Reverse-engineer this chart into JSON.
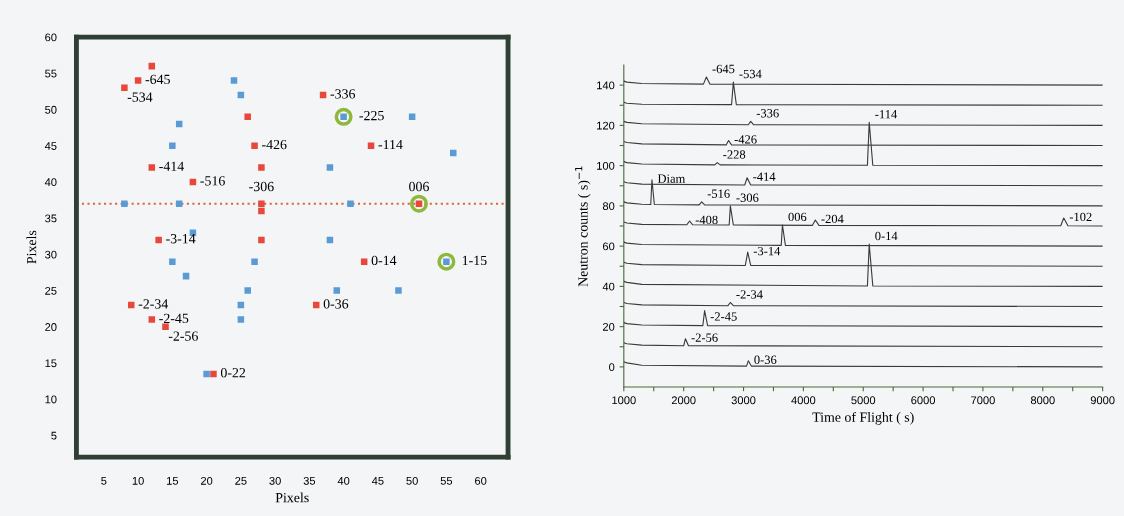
{
  "chart_data": [
    {
      "type": "scatter",
      "xlabel": "Pixels",
      "ylabel": "Pixels",
      "xlim": [
        1,
        64
      ],
      "ylim": [
        2,
        60
      ],
      "xticks": [
        5,
        10,
        15,
        20,
        25,
        30,
        35,
        40,
        45,
        50,
        55,
        60
      ],
      "yticks": [
        5,
        10,
        15,
        20,
        25,
        30,
        35,
        40,
        45,
        50,
        55,
        60
      ],
      "grid": false,
      "legend": false,
      "series": [
        {
          "color": "#e8483c",
          "marker": "square",
          "x": [
            12,
            10,
            8,
            26,
            37,
            27,
            44,
            28,
            12,
            18,
            28,
            28,
            51,
            28,
            13,
            43,
            9,
            12,
            14,
            21,
            36
          ],
          "values": [
            56,
            54,
            53,
            49,
            52,
            45,
            45,
            42,
            42,
            40,
            37,
            36,
            37,
            32,
            32,
            29,
            23,
            21,
            20,
            13.5,
            23
          ]
        },
        {
          "color": "#5b9bd5",
          "marker": "square",
          "x": [
            24,
            25,
            16,
            15,
            40,
            50,
            56,
            38,
            8,
            16,
            41,
            18,
            38,
            15,
            27,
            17,
            55,
            26,
            39,
            48,
            25,
            25,
            20
          ],
          "values": [
            54,
            52,
            48,
            45,
            49,
            49,
            44,
            42,
            37,
            37,
            37,
            33,
            32,
            29,
            29,
            27,
            29,
            25,
            25,
            25,
            23,
            21,
            13.5
          ]
        },
        {
          "color": "#8db83a",
          "marker": "circle",
          "x": [
            40,
            51,
            55
          ],
          "values": [
            49,
            37,
            29
          ]
        }
      ],
      "ref_lines": [
        {
          "axis": "y",
          "value": 37,
          "color": "#e06040",
          "line_style": "dotted"
        }
      ],
      "annotations": [
        {
          "text": "-645",
          "x": 10,
          "y": 54
        },
        {
          "text": "-534",
          "x": 8,
          "y": 53
        },
        {
          "text": "-336",
          "x": 37,
          "y": 52
        },
        {
          "text": "-225",
          "x": 40,
          "y": 49
        },
        {
          "text": "-426",
          "x": 27,
          "y": 45
        },
        {
          "text": "-114",
          "x": 44,
          "y": 45
        },
        {
          "text": "-414",
          "x": 12,
          "y": 42
        },
        {
          "text": "-516",
          "x": 18,
          "y": 40
        },
        {
          "text": "-306",
          "x": 28,
          "y": 37
        },
        {
          "text": "006",
          "x": 51,
          "y": 37
        },
        {
          "text": "-3-14",
          "x": 13,
          "y": 32
        },
        {
          "text": "0-14",
          "x": 43,
          "y": 29
        },
        {
          "text": "1-15",
          "x": 55,
          "y": 29
        },
        {
          "text": "-2-34",
          "x": 9,
          "y": 23
        },
        {
          "text": "-2-45",
          "x": 12,
          "y": 21
        },
        {
          "text": "-2-56",
          "x": 14,
          "y": 20
        },
        {
          "text": "0-36",
          "x": 36,
          "y": 23
        },
        {
          "text": "0-22",
          "x": 21,
          "y": 13.5
        }
      ]
    },
    {
      "type": "line",
      "xlabel": "Time of Flight ( s)",
      "ylabel": "Neutron counts ( s)$^{−1}$",
      "xlim": [
        1000,
        9000
      ],
      "ylim": [
        -10,
        150
      ],
      "xticks": [
        1000,
        {
          "value": 1500,
          "label": null
        },
        2000,
        {
          "value": 2500,
          "label": null
        },
        3000,
        {
          "value": 3500,
          "label": null
        },
        4000,
        {
          "value": 4500,
          "label": null
        },
        5000,
        {
          "value": 5500,
          "label": null
        },
        6000,
        {
          "value": 6500,
          "label": null
        },
        7000,
        {
          "value": 7500,
          "label": null
        },
        8000,
        {
          "value": 8500,
          "label": null
        },
        9000
      ],
      "yticks": [
        0,
        {
          "value": 10,
          "label": null
        },
        20,
        {
          "value": 30,
          "label": null
        },
        40,
        {
          "value": 50,
          "label": null
        },
        60,
        {
          "value": 70,
          "label": null
        },
        80,
        {
          "value": 90,
          "label": null
        },
        100,
        {
          "value": 110,
          "label": null
        },
        120,
        {
          "value": 130,
          "label": null
        },
        140
      ],
      "grid": false,
      "legend": false,
      "line_style": "solid",
      "marker": "none",
      "series": [
        {
          "color": "#3a3a3a",
          "x": [
            1000,
            1050,
            1300,
            2330,
            2380,
            2440,
            9000
          ],
          "values": [
            142,
            141.5,
            140.8,
            140.5,
            144,
            140.5,
            140
          ]
        },
        {
          "color": "#3a3a3a",
          "x": [
            1000,
            1050,
            1300,
            2800,
            2830,
            2880,
            9000
          ],
          "values": [
            131.5,
            131,
            130.5,
            130.3,
            141.5,
            130.3,
            130
          ]
        },
        {
          "color": "#3a3a3a",
          "x": [
            1000,
            1050,
            1300,
            3080,
            3120,
            3170,
            9000
          ],
          "values": [
            122,
            121.5,
            120.8,
            120.3,
            122,
            120.3,
            120
          ]
        },
        {
          "color": "#3a3a3a",
          "x": [
            1000,
            1050,
            1300,
            2710,
            2750,
            2800,
            9000
          ],
          "values": [
            112,
            111.5,
            110.8,
            110.3,
            112.5,
            110.3,
            110
          ]
        },
        {
          "color": "#3a3a3a",
          "x": [
            1000,
            1050,
            1300,
            2520,
            2560,
            2610,
            5070,
            5100,
            5160,
            9000
          ],
          "values": [
            102,
            101.5,
            100.8,
            100.4,
            101.5,
            100.4,
            100.2,
            121.5,
            100.2,
            100
          ]
        },
        {
          "color": "#3a3a3a",
          "x": [
            1000,
            1050,
            1300,
            3020,
            3060,
            3120,
            9000
          ],
          "values": [
            92,
            91.5,
            90.8,
            90.4,
            94,
            90.4,
            90
          ]
        },
        {
          "color": "#3a3a3a",
          "x": [
            1000,
            1050,
            1300,
            1450,
            1470,
            1510,
            2260,
            2300,
            2350,
            9000
          ],
          "values": [
            82,
            81.5,
            80.8,
            80.7,
            93,
            80.7,
            80.5,
            82,
            80.5,
            80
          ]
        },
        {
          "color": "#3a3a3a",
          "x": [
            1000,
            1050,
            1300,
            2050,
            2100,
            2150,
            2760,
            2780,
            2830,
            4150,
            4200,
            4260,
            8300,
            8350,
            8420,
            9000
          ],
          "values": [
            72,
            71.5,
            70.8,
            70.6,
            72.5,
            70.6,
            70.5,
            80,
            70.5,
            70.3,
            73,
            70.3,
            70.1,
            74,
            70.1,
            70
          ]
        },
        {
          "color": "#3a3a3a",
          "x": [
            1000,
            1050,
            1300,
            3630,
            3650,
            3700,
            9000
          ],
          "values": [
            62,
            61.5,
            60.8,
            60.4,
            70.5,
            60.4,
            60
          ]
        },
        {
          "color": "#3a3a3a",
          "x": [
            1000,
            1050,
            1300,
            3030,
            3070,
            3120,
            9000
          ],
          "values": [
            52,
            51.5,
            50.8,
            50.4,
            57,
            50.4,
            50
          ]
        },
        {
          "color": "#3a3a3a",
          "x": [
            1000,
            1050,
            1300,
            5070,
            5100,
            5160,
            9000
          ],
          "values": [
            42.5,
            42,
            41,
            40.2,
            61,
            40.2,
            40
          ]
        },
        {
          "color": "#3a3a3a",
          "x": [
            1000,
            1050,
            1300,
            2740,
            2780,
            2830,
            9000
          ],
          "values": [
            32,
            31.5,
            30.8,
            30.4,
            32,
            30.4,
            30
          ]
        },
        {
          "color": "#3a3a3a",
          "x": [
            1000,
            1050,
            1300,
            2320,
            2350,
            2400,
            9000
          ],
          "values": [
            22,
            21.5,
            20.8,
            20.5,
            28,
            20.5,
            20
          ]
        },
        {
          "color": "#3a3a3a",
          "x": [
            1000,
            1050,
            1300,
            2000,
            2030,
            2080,
            9000
          ],
          "values": [
            12,
            11.5,
            10.8,
            10.5,
            14,
            10.5,
            10
          ]
        },
        {
          "color": "#3a3a3a",
          "x": [
            1000,
            1050,
            1300,
            3050,
            3080,
            3130,
            9000
          ],
          "values": [
            2.5,
            2,
            0.8,
            0.4,
            3,
            0.4,
            0
          ]
        }
      ],
      "annotations": [
        {
          "text": "-645",
          "x": 2380,
          "y": 144
        },
        {
          "text": "-534",
          "x": 2830,
          "y": 141.5
        },
        {
          "text": "-336",
          "x": 3120,
          "y": 122
        },
        {
          "text": "-426",
          "x": 2750,
          "y": 112.5
        },
        {
          "text": "-228",
          "x": 2560,
          "y": 101.5
        },
        {
          "text": "-114",
          "x": 5100,
          "y": 121.5
        },
        {
          "text": "-414",
          "x": 3060,
          "y": 94
        },
        {
          "text": "Diam",
          "x": 1470,
          "y": 93
        },
        {
          "text": "-516",
          "x": 2300,
          "y": 82
        },
        {
          "text": "-408",
          "x": 2100,
          "y": 72.5
        },
        {
          "text": "-306",
          "x": 2780,
          "y": 80
        },
        {
          "text": "-204",
          "x": 4200,
          "y": 73
        },
        {
          "text": "-102",
          "x": 8350,
          "y": 74
        },
        {
          "text": "006",
          "x": 3650,
          "y": 70.5
        },
        {
          "text": "-3-14",
          "x": 3070,
          "y": 57
        },
        {
          "text": "0-14",
          "x": 5100,
          "y": 61
        },
        {
          "text": "-2-34",
          "x": 2780,
          "y": 32
        },
        {
          "text": "-2-45",
          "x": 2350,
          "y": 28
        },
        {
          "text": "-2-56",
          "x": 2030,
          "y": 14
        },
        {
          "text": "0-36",
          "x": 3080,
          "y": 3
        }
      ]
    }
  ]
}
